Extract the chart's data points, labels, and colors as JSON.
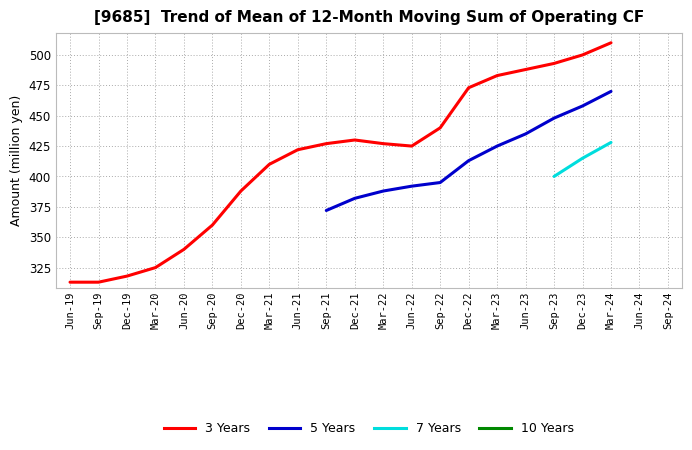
{
  "title": "[9685]  Trend of Mean of 12-Month Moving Sum of Operating CF",
  "ylabel": "Amount (million yen)",
  "background_color": "#ffffff",
  "grid_color": "#aaaaaa",
  "ylim": [
    308,
    518
  ],
  "yticks": [
    325,
    350,
    375,
    400,
    425,
    450,
    475,
    500
  ],
  "xtick_labels": [
    "Jun-19",
    "Sep-19",
    "Dec-19",
    "Mar-20",
    "Jun-20",
    "Sep-20",
    "Dec-20",
    "Mar-21",
    "Jun-21",
    "Sep-21",
    "Dec-21",
    "Mar-22",
    "Jun-22",
    "Sep-22",
    "Dec-22",
    "Mar-23",
    "Jun-23",
    "Sep-23",
    "Dec-23",
    "Mar-24",
    "Jun-24",
    "Sep-24"
  ],
  "series": {
    "3yr": {
      "color": "#ff0000",
      "label": "3 Years",
      "x": [
        "Jun-19",
        "Sep-19",
        "Dec-19",
        "Mar-20",
        "Jun-20",
        "Sep-20",
        "Dec-20",
        "Mar-21",
        "Jun-21",
        "Sep-21",
        "Dec-21",
        "Mar-22",
        "Jun-22",
        "Sep-22",
        "Dec-22",
        "Mar-23",
        "Jun-23",
        "Sep-23",
        "Dec-23",
        "Mar-24"
      ],
      "y": [
        313,
        313,
        318,
        325,
        340,
        360,
        388,
        410,
        422,
        427,
        430,
        427,
        425,
        440,
        473,
        483,
        488,
        493,
        500,
        510
      ]
    },
    "5yr": {
      "color": "#0000cc",
      "label": "5 Years",
      "x": [
        "Sep-21",
        "Dec-21",
        "Mar-22",
        "Jun-22",
        "Sep-22",
        "Dec-22",
        "Mar-23",
        "Jun-23",
        "Sep-23",
        "Dec-23",
        "Mar-24"
      ],
      "y": [
        372,
        382,
        388,
        392,
        395,
        413,
        425,
        435,
        448,
        458,
        470
      ]
    },
    "7yr": {
      "color": "#00dddd",
      "label": "7 Years",
      "x": [
        "Sep-23",
        "Dec-23",
        "Mar-24"
      ],
      "y": [
        400,
        415,
        428
      ]
    },
    "10yr": {
      "color": "#008800",
      "label": "10 Years",
      "x": [],
      "y": []
    }
  }
}
